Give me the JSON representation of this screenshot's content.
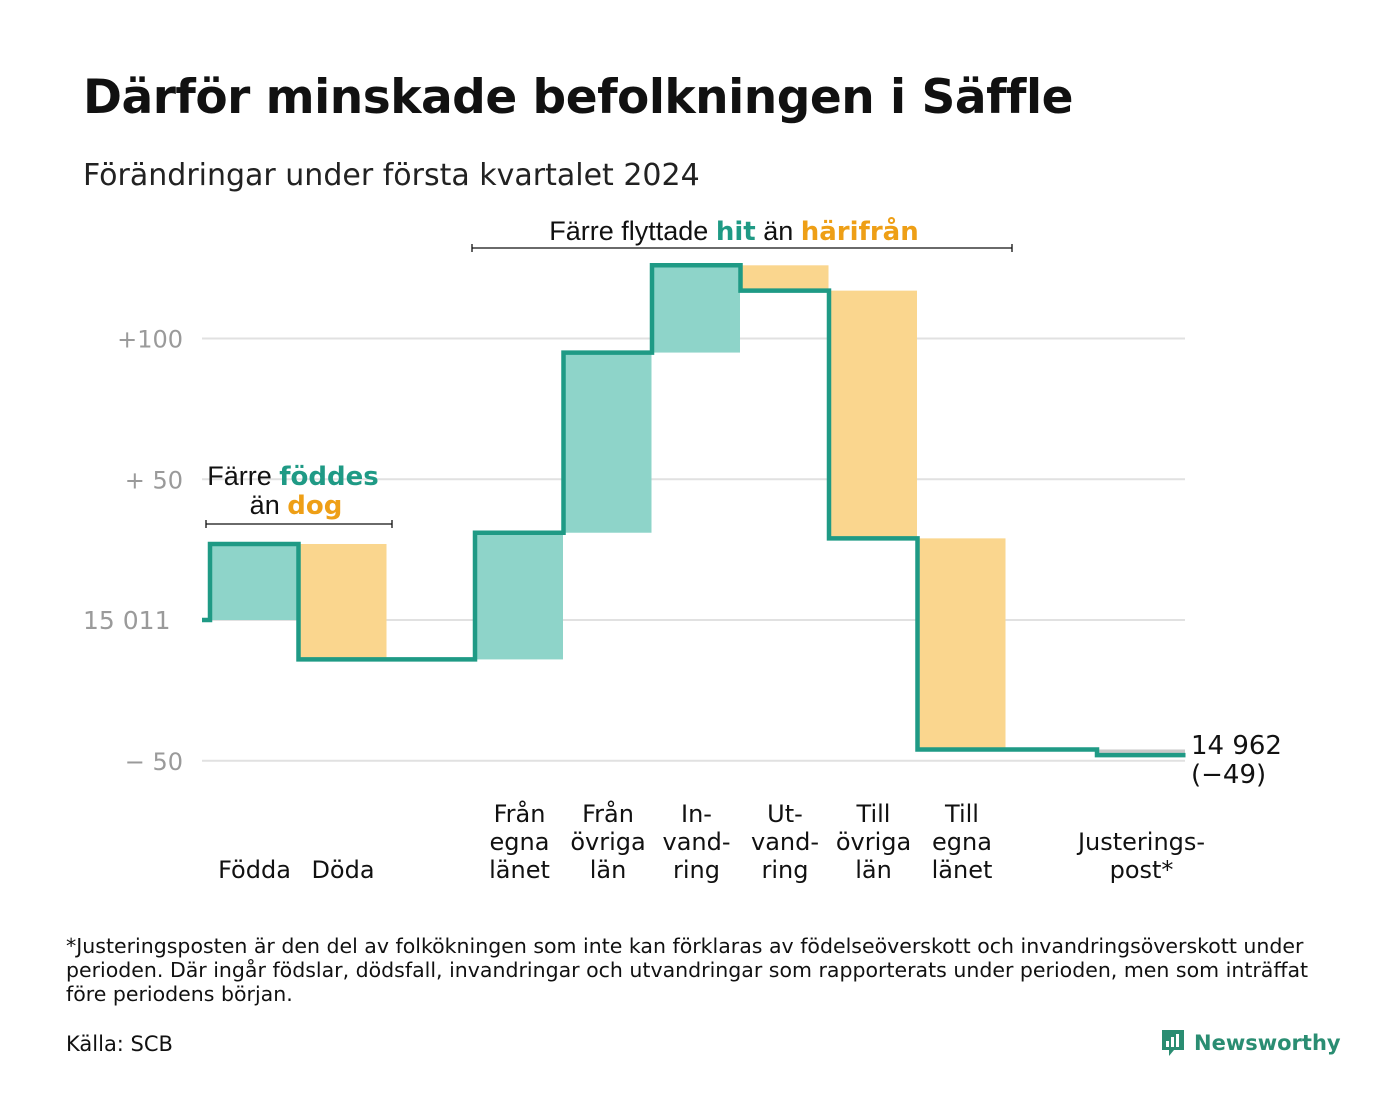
{
  "title": "Därför minskade befolkningen i Säffle",
  "subtitle": "Förändringar under första kvartalet 2024",
  "chart_data": {
    "type": "waterfall",
    "title": "Därför minskade befolkningen i Säffle",
    "subtitle": "Förändringar under första kvartalet 2024",
    "start_value": 15011,
    "start_label": "15  011",
    "end_value": 14962,
    "end_label": "14 962",
    "end_change_label": "(−49)",
    "ylim": [
      -55,
      130
    ],
    "yticks": [
      {
        "value": 100,
        "label": "+100"
      },
      {
        "value": 50,
        "label": "+  50"
      },
      {
        "value": -50,
        "label": "−  50"
      }
    ],
    "grid": true,
    "steps": [
      {
        "category": "Födda",
        "label_lines": [
          "Födda"
        ],
        "change": 27,
        "type": "increase"
      },
      {
        "category": "Döda",
        "label_lines": [
          "Döda"
        ],
        "change": -41,
        "type": "decrease"
      },
      {
        "category": "Från egna länet",
        "label_lines": [
          "Från",
          "egna",
          "länet"
        ],
        "change": 45,
        "type": "increase"
      },
      {
        "category": "Från övriga län",
        "label_lines": [
          "Från",
          "övriga",
          "län"
        ],
        "change": 64,
        "type": "increase"
      },
      {
        "category": "Invandring",
        "label_lines": [
          "In-",
          "vand-",
          "ring"
        ],
        "change": 31,
        "type": "increase"
      },
      {
        "category": "Utvandring",
        "label_lines": [
          "Ut-",
          "vand-",
          "ring"
        ],
        "change": -9,
        "type": "decrease"
      },
      {
        "category": "Till övriga län",
        "label_lines": [
          "Till",
          "övriga",
          "län"
        ],
        "change": -88,
        "type": "decrease"
      },
      {
        "category": "Till egna länet",
        "label_lines": [
          "Till",
          "egna",
          "länet"
        ],
        "change": -75,
        "type": "decrease"
      },
      {
        "category": "Justeringspost*",
        "label_lines": [
          "Justerings-",
          "post*"
        ],
        "change": -2,
        "type": "adjustment"
      }
    ],
    "annotations": [
      {
        "plain": "Färre",
        "emph_increase": "föddes",
        "plain2": "än",
        "emph_decrease": "dog"
      },
      {
        "plain": "Färre flyttade",
        "emph_increase": "hit",
        "plain2": "än",
        "emph_decrease": "härifrån"
      }
    ],
    "colors": {
      "increase_fill": "#8ed4c9",
      "decrease_fill": "#fad68e",
      "adjustment_fill": "#c8c8c8",
      "line": "#1f9a85",
      "increase_text": "#1f9a85",
      "decrease_text": "#ee9f16",
      "grid": "#e1e1e1",
      "tick_text": "#9a9a9a"
    }
  },
  "footnote": "*Justeringsposten är den del av folkökningen som inte kan förklaras av födelseöverskott och invandringsöverskott under perioden. Där ingår födslar, dödsfall, invandringar och utvandringar som rapporterats under perioden, men som inträffat före periodens början.",
  "source": "Källa: SCB",
  "brand": {
    "name": "Newsworthy",
    "icon": "bar-chart-logo-icon",
    "color": "#2a8d72"
  }
}
